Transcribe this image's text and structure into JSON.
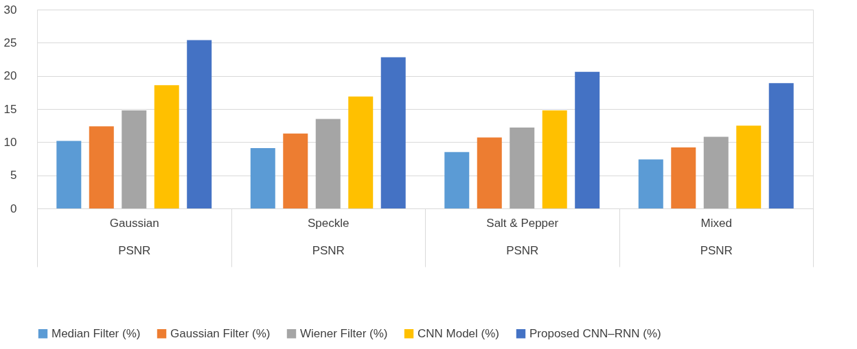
{
  "chart_data": {
    "type": "bar",
    "categories": [
      "Gaussian\nPSNR",
      "Speckle\nPSNR",
      "Salt & Pepper\nPSNR",
      "Mixed\nPSNR"
    ],
    "series": [
      {
        "name": "Median Filter (%)",
        "color": "#5b9bd5",
        "values": [
          10.2,
          9.1,
          8.5,
          7.4
        ]
      },
      {
        "name": "Gaussian Filter (%)",
        "color": "#ed7d31",
        "values": [
          12.4,
          11.3,
          10.7,
          9.2
        ]
      },
      {
        "name": "Wiener Filter (%)",
        "color": "#a5a5a5",
        "values": [
          14.8,
          13.5,
          12.2,
          10.8
        ]
      },
      {
        "name": "CNN Model (%)",
        "color": "#ffc000",
        "values": [
          18.6,
          16.9,
          14.8,
          12.5
        ]
      },
      {
        "name": "Proposed CNN–RNN (%)",
        "color": "#4472c4",
        "values": [
          25.4,
          22.8,
          20.6,
          18.9
        ]
      }
    ],
    "ylim": [
      0,
      30
    ],
    "yticks": [
      0,
      5,
      10,
      15,
      20,
      25,
      30
    ],
    "grid": "y",
    "legend": "bottom"
  }
}
